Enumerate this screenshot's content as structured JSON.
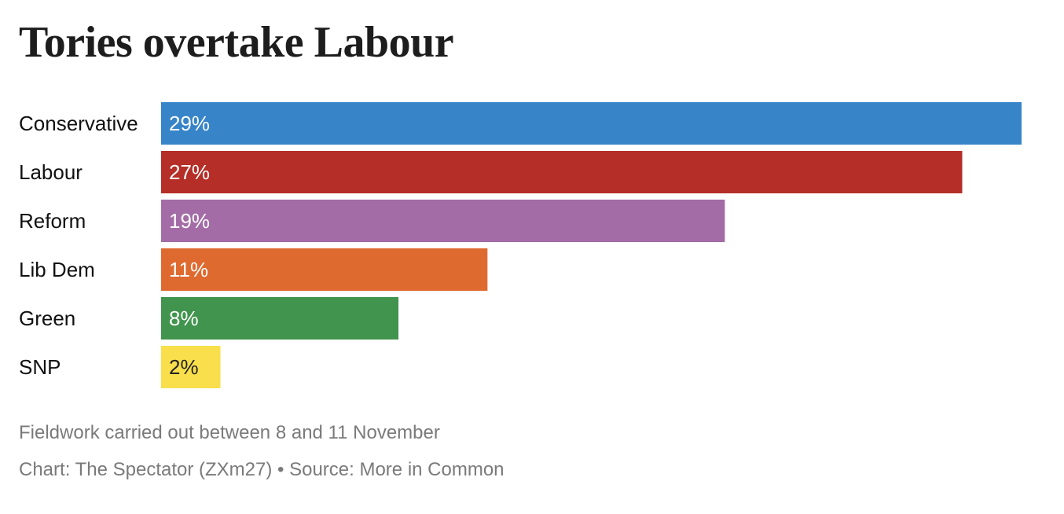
{
  "colors": {
    "title": "#1d1d1d",
    "label": "#111111",
    "value_light": "#ffffff",
    "value_dark": "#222222",
    "footer": "#7a7a7a"
  },
  "chart_data": {
    "type": "bar",
    "orientation": "horizontal",
    "title": "Tories overtake Labour",
    "categories": [
      "Conservative",
      "Labour",
      "Reform",
      "Lib Dem",
      "Green",
      "SNP"
    ],
    "values": [
      29,
      27,
      19,
      11,
      8,
      2
    ],
    "value_labels": [
      "29%",
      "27%",
      "19%",
      "11%",
      "8%",
      "2%"
    ],
    "bar_colors": [
      "#3784c8",
      "#b52e27",
      "#a36ca6",
      "#df6a30",
      "#41944d",
      "#f8df4b"
    ],
    "value_label_colors": [
      "#ffffff",
      "#ffffff",
      "#ffffff",
      "#ffffff",
      "#ffffff",
      "#222222"
    ],
    "xlim": [
      0,
      29
    ],
    "grid": false,
    "legend": "none"
  },
  "footer": {
    "note": "Fieldwork carried out between 8 and 11 November",
    "credit": "Chart: The Spectator (ZXm27) • Source: More in Common"
  }
}
